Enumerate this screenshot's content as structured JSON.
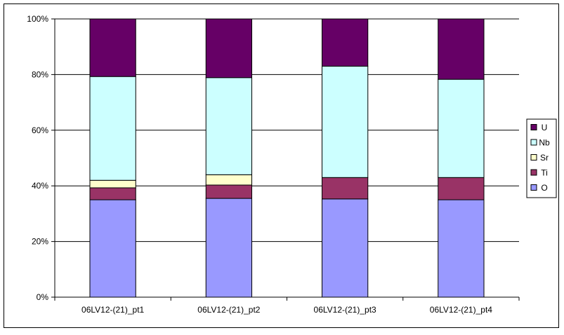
{
  "chart_data": {
    "type": "bar",
    "stacked": "percent",
    "categories": [
      "06LV12-(21)_pt1",
      "06LV12-(21)_pt2",
      "06LV12-(21)_pt3",
      "06LV12-(21)_pt4"
    ],
    "series": [
      {
        "name": "O",
        "color": "#9999ff",
        "values": [
          35,
          35.5,
          35.3,
          35
        ]
      },
      {
        "name": "Ti",
        "color": "#993366",
        "values": [
          4.3,
          4.8,
          7.7,
          8
        ]
      },
      {
        "name": "Sr",
        "color": "#ffffcc",
        "values": [
          2.7,
          3.7,
          0,
          0
        ]
      },
      {
        "name": "Nb",
        "color": "#ccffff",
        "values": [
          37.3,
          34.9,
          40.0,
          35.3
        ]
      },
      {
        "name": "U",
        "color": "#660066",
        "values": [
          20.7,
          21.1,
          17.0,
          21.7
        ]
      }
    ],
    "y_ticks": [
      "0%",
      "20%",
      "40%",
      "60%",
      "80%",
      "100%"
    ],
    "ylim": [
      0,
      100
    ],
    "title": "",
    "xlabel": "",
    "ylabel": "",
    "grid": true,
    "legend_position": "right"
  }
}
